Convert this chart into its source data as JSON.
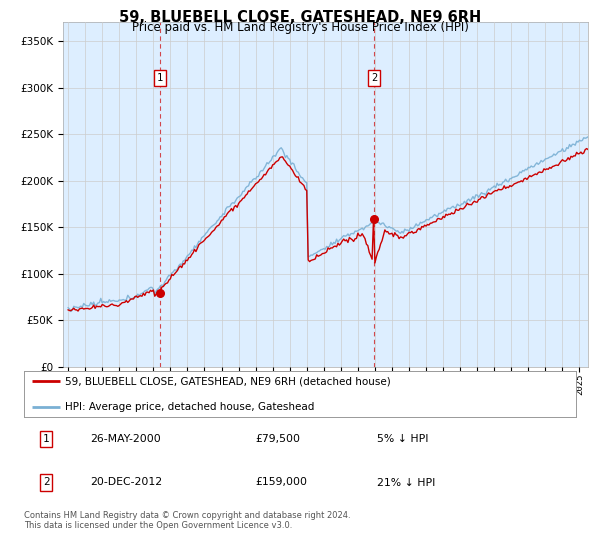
{
  "title": "59, BLUEBELL CLOSE, GATESHEAD, NE9 6RH",
  "subtitle": "Price paid vs. HM Land Registry's House Price Index (HPI)",
  "plot_bg_color": "#ddeeff",
  "sale1_date": "26-MAY-2000",
  "sale1_price": 79500,
  "sale1_pct": "5%",
  "sale1_x": 2000.37,
  "sale2_date": "20-DEC-2012",
  "sale2_price": 159000,
  "sale2_pct": "21%",
  "sale2_x": 2012.95,
  "legend_label_red": "59, BLUEBELL CLOSE, GATESHEAD, NE9 6RH (detached house)",
  "legend_label_blue": "HPI: Average price, detached house, Gateshead",
  "footnote": "Contains HM Land Registry data © Crown copyright and database right 2024.\nThis data is licensed under the Open Government Licence v3.0.",
  "ylim": [
    0,
    370000
  ],
  "xlim_start": 1994.7,
  "xlim_end": 2025.5,
  "red_color": "#cc0000",
  "blue_color": "#7ab0d4",
  "grid_color": "#cccccc",
  "box_color": "#cc0000"
}
